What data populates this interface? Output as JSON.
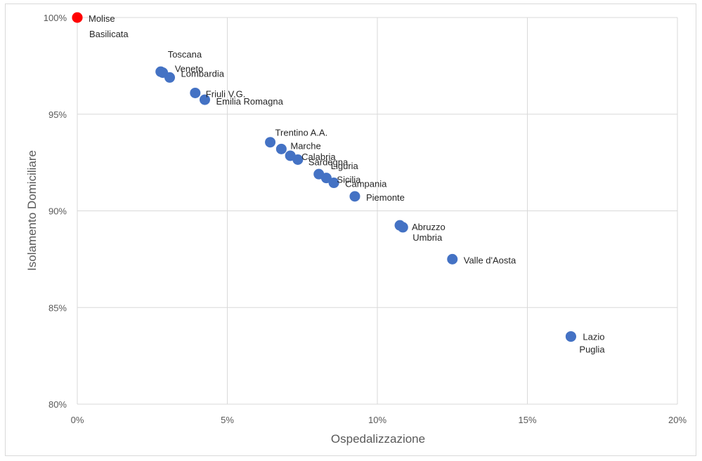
{
  "chart_data": {
    "type": "scatter",
    "title": "",
    "xlabel": "Ospedalizzazione",
    "ylabel": "Isolamento Domiciliare",
    "xlim": [
      0,
      0.2
    ],
    "ylim": [
      0.8,
      1.0
    ],
    "x_ticks": [
      "0%",
      "5%",
      "10%",
      "15%",
      "20%"
    ],
    "y_ticks": [
      "80%",
      "85%",
      "90%",
      "95%",
      "100%"
    ],
    "grid": true,
    "colors": {
      "default": "#4472c4",
      "highlight": "#ff0000",
      "grid": "#d9d9d9"
    },
    "points": [
      {
        "label": "Molise",
        "x": 0.0,
        "y": 1.0,
        "color": "#ff0000",
        "label_color": "#262626"
      },
      {
        "label": "Basilicata",
        "x": 0.0,
        "y": 1.0,
        "color": "#ff0000",
        "label_color": "#ff0000"
      },
      {
        "label": "Toscana",
        "x": 0.0278,
        "y": 0.972,
        "color": "#4472c4",
        "label_color": "#262626"
      },
      {
        "label": "Veneto",
        "x": 0.0285,
        "y": 0.9715,
        "color": "#4472c4",
        "label_color": "#262626"
      },
      {
        "label": "Lombardia",
        "x": 0.0308,
        "y": 0.969,
        "color": "#4472c4",
        "label_color": "#262626"
      },
      {
        "label": "Friuli V.G.",
        "x": 0.0393,
        "y": 0.961,
        "color": "#4472c4",
        "label_color": "#262626"
      },
      {
        "label": "Emilia Romagna",
        "x": 0.0425,
        "y": 0.9575,
        "color": "#4472c4",
        "label_color": "#262626"
      },
      {
        "label": "Trentino A.A.",
        "x": 0.0643,
        "y": 0.9355,
        "color": "#4472c4",
        "label_color": "#262626"
      },
      {
        "label": "Marche",
        "x": 0.068,
        "y": 0.932,
        "color": "#4472c4",
        "label_color": "#262626"
      },
      {
        "label": "Calabria",
        "x": 0.071,
        "y": 0.9285,
        "color": "#4472c4",
        "label_color": "#262626"
      },
      {
        "label": "Sardegna",
        "x": 0.0735,
        "y": 0.9265,
        "color": "#4472c4",
        "label_color": "#262626"
      },
      {
        "label": "Liguria",
        "x": 0.0805,
        "y": 0.919,
        "color": "#4472c4",
        "label_color": "#262626"
      },
      {
        "label": "Sicilia",
        "x": 0.083,
        "y": 0.917,
        "color": "#4472c4",
        "label_color": "#262626"
      },
      {
        "label": "Campania",
        "x": 0.0855,
        "y": 0.9145,
        "color": "#4472c4",
        "label_color": "#262626"
      },
      {
        "label": "Piemonte",
        "x": 0.0925,
        "y": 0.9075,
        "color": "#4472c4",
        "label_color": "#262626"
      },
      {
        "label": "Abruzzo",
        "x": 0.1075,
        "y": 0.8925,
        "color": "#4472c4",
        "label_color": "#262626"
      },
      {
        "label": "Umbria",
        "x": 0.1085,
        "y": 0.8915,
        "color": "#4472c4",
        "label_color": "#262626"
      },
      {
        "label": "Valle d'Aosta",
        "x": 0.125,
        "y": 0.875,
        "color": "#4472c4",
        "label_color": "#262626"
      },
      {
        "label": "Lazio",
        "x": 0.1645,
        "y": 0.835,
        "color": "#4472c4",
        "label_color": "#262626"
      },
      {
        "label": "Puglia",
        "x": 0.1645,
        "y": 0.835,
        "color": "#4472c4",
        "label_color": "#262626"
      }
    ]
  }
}
